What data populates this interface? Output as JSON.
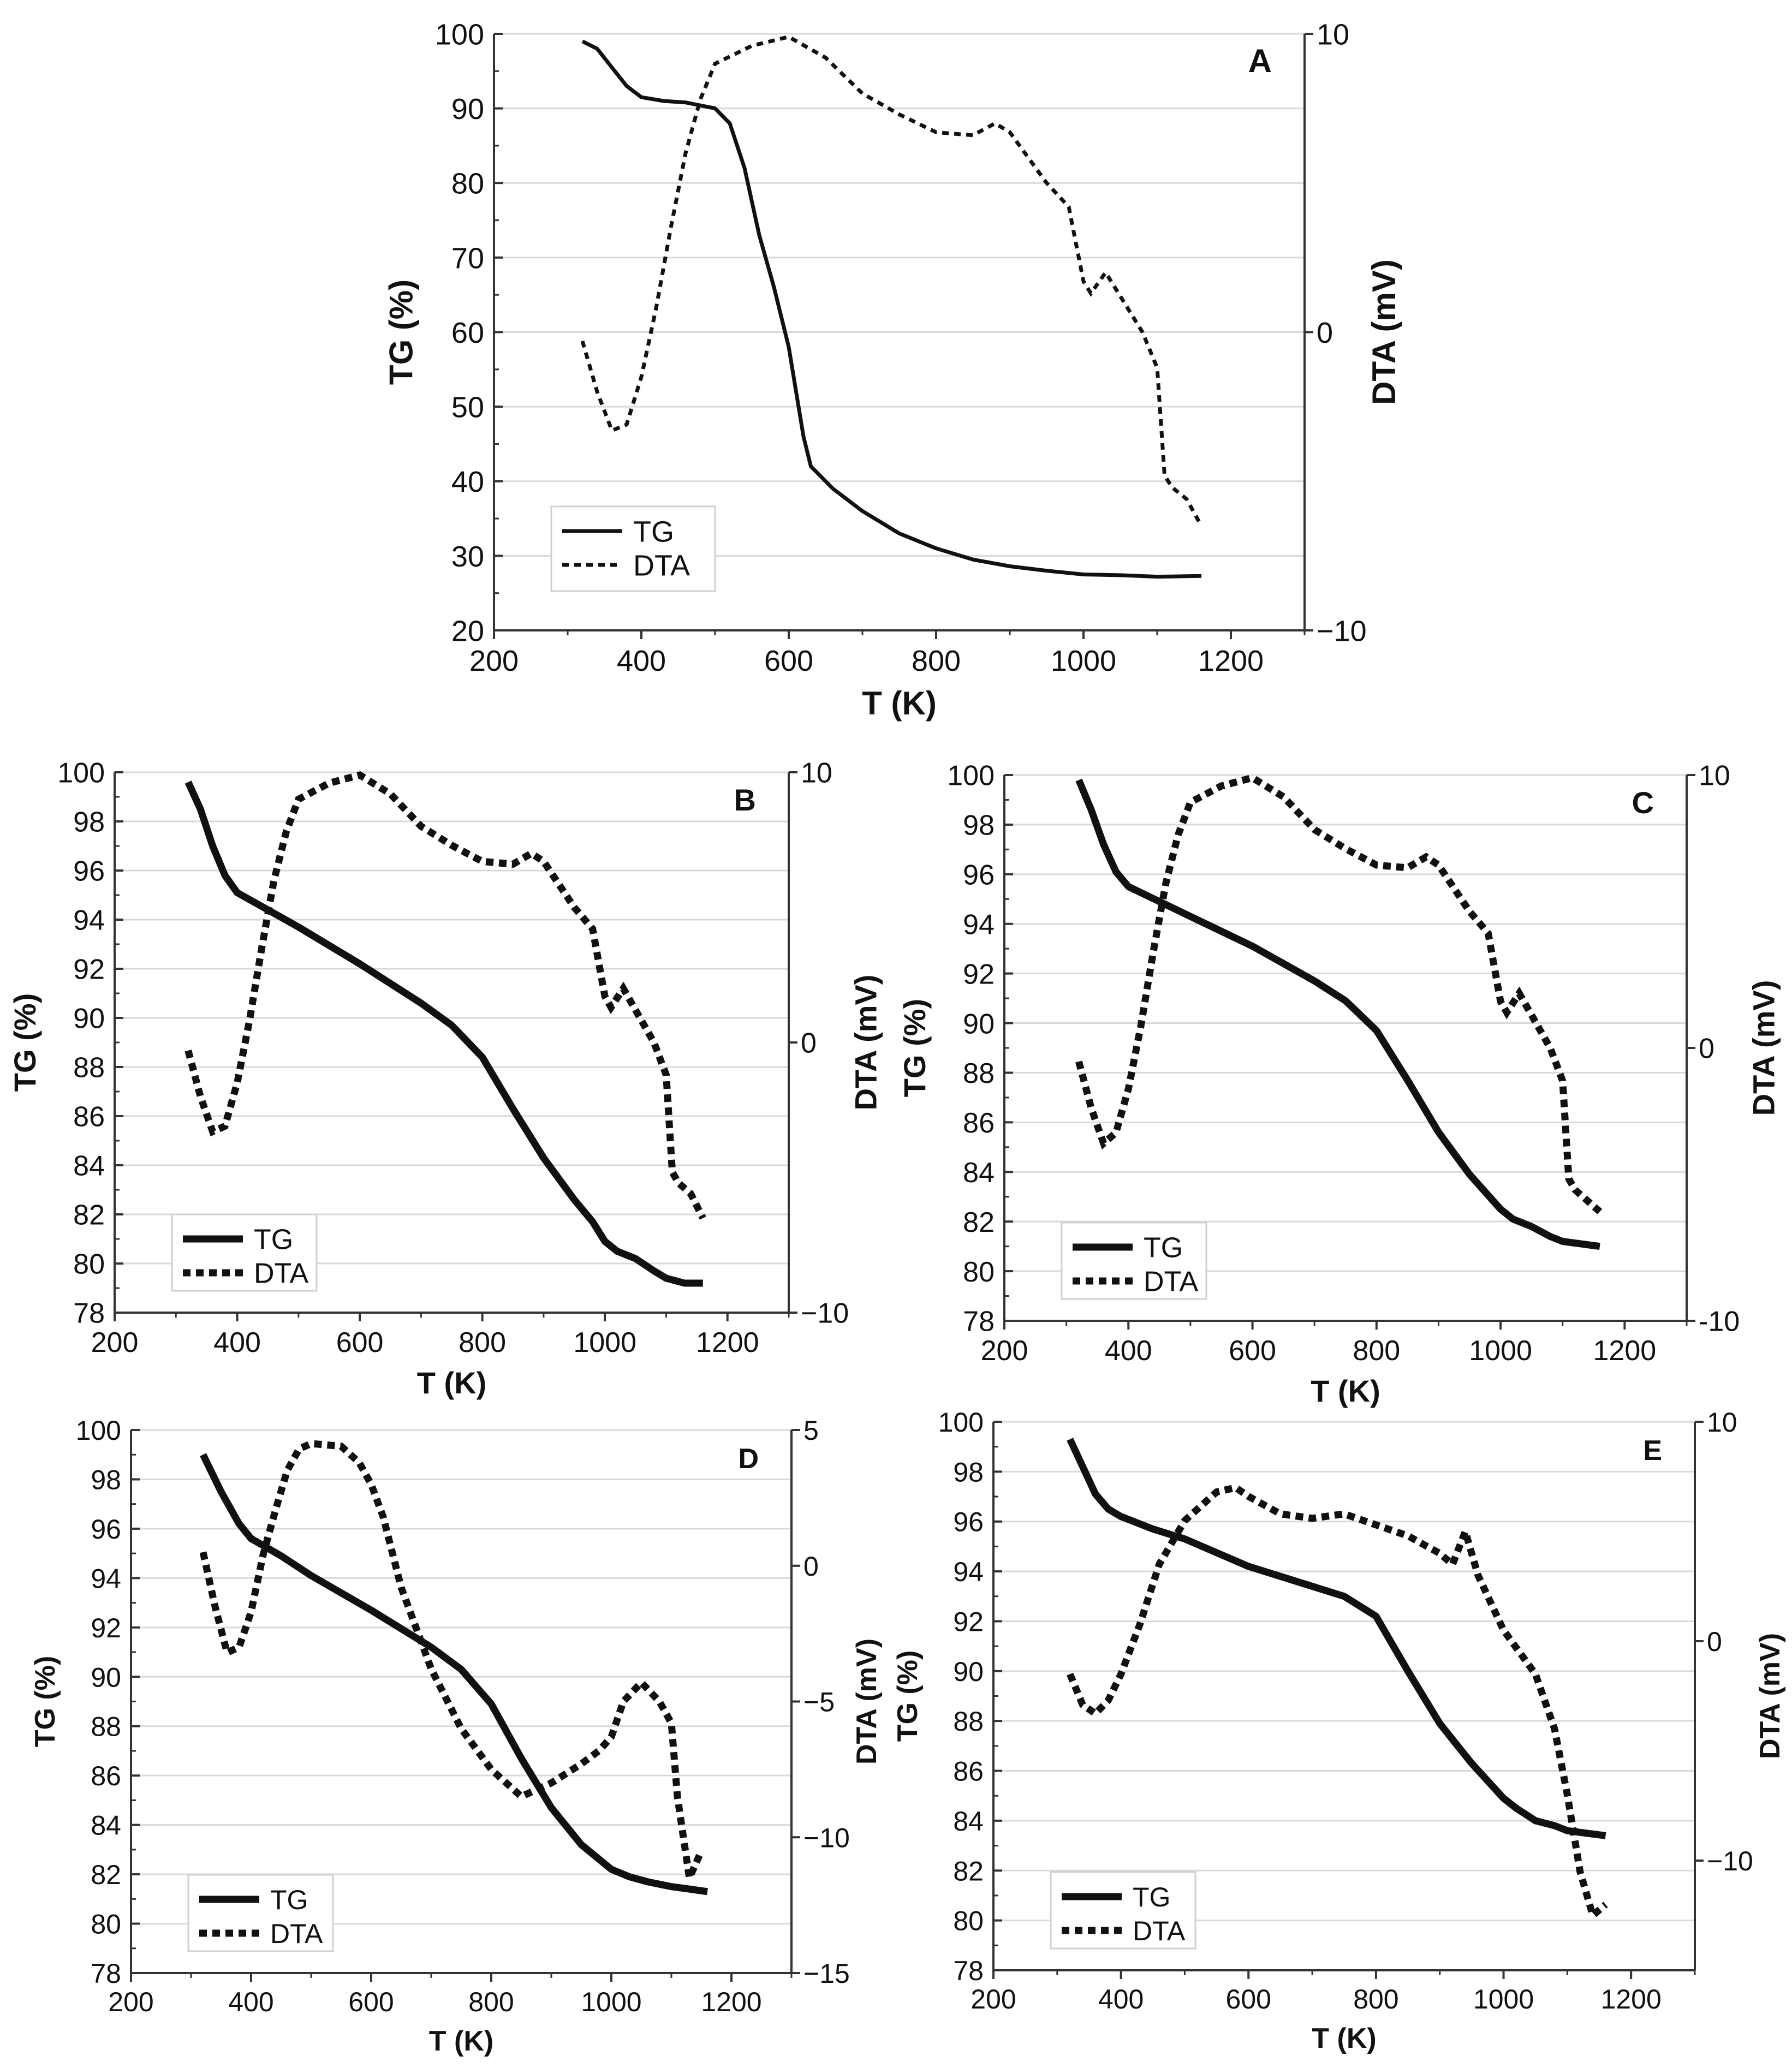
{
  "chart_data": [
    {
      "id": "A",
      "type": "line",
      "panel_label": "A",
      "xlabel": "T (K)",
      "ylabel": "TG (%)",
      "y2label": "DTA (mV)",
      "xlim": [
        200,
        1300
      ],
      "xticks": [
        200,
        400,
        600,
        800,
        1000,
        1200
      ],
      "ylim": [
        20,
        100
      ],
      "yticks": [
        20,
        30,
        40,
        50,
        60,
        70,
        80,
        90,
        100
      ],
      "y2lim": [
        -10,
        10
      ],
      "y2ticks": [
        -10,
        0,
        10
      ],
      "y2ticklabels": [
        "−10",
        "0",
        "10"
      ],
      "grid": "horizontal",
      "legend": {
        "position": "bottom-left",
        "entries": [
          "TG",
          "DTA"
        ]
      },
      "series": [
        {
          "name": "TG",
          "axis": "left",
          "style": "solid",
          "x": [
            320,
            340,
            360,
            380,
            400,
            430,
            460,
            500,
            520,
            540,
            560,
            580,
            600,
            610,
            620,
            630,
            660,
            700,
            750,
            800,
            850,
            900,
            950,
            1000,
            1050,
            1100,
            1160
          ],
          "values": [
            99,
            98,
            95.5,
            93,
            91.5,
            91,
            90.8,
            90,
            88,
            82,
            73,
            66,
            58,
            52,
            46,
            42,
            39,
            36,
            33,
            31,
            29.5,
            28.6,
            28,
            27.5,
            27.4,
            27.2,
            27.3
          ]
        },
        {
          "name": "DTA",
          "axis": "right",
          "style": "dotted",
          "x": [
            320,
            340,
            360,
            380,
            400,
            420,
            440,
            460,
            480,
            500,
            550,
            600,
            650,
            700,
            750,
            800,
            850,
            880,
            900,
            950,
            980,
            1000,
            1010,
            1030,
            1050,
            1080,
            1100,
            1110,
            1120,
            1140,
            1160
          ],
          "values": [
            -0.3,
            -2,
            -3.3,
            -3.1,
            -1.5,
            0.8,
            3.5,
            6,
            7.8,
            9,
            9.6,
            9.9,
            9.2,
            8,
            7.3,
            6.7,
            6.6,
            7,
            6.7,
            5,
            4.2,
            1.7,
            1.3,
            2,
            1.2,
            0,
            -1.2,
            -4.8,
            -5.2,
            -5.6,
            -6.5
          ]
        }
      ]
    },
    {
      "id": "B",
      "type": "line",
      "panel_label": "B",
      "xlabel": "T (K)",
      "ylabel": "TG (%)",
      "y2label": "DTA (mV)",
      "xlim": [
        200,
        1300
      ],
      "xticks": [
        200,
        400,
        600,
        800,
        1000,
        1200
      ],
      "ylim": [
        78,
        100
      ],
      "yticks": [
        78,
        80,
        82,
        84,
        86,
        88,
        90,
        92,
        94,
        96,
        98,
        100
      ],
      "y2lim": [
        -10,
        10
      ],
      "y2ticks": [
        -10,
        0,
        10
      ],
      "y2ticklabels": [
        "−10",
        "0",
        "10"
      ],
      "grid": "horizontal",
      "legend": {
        "position": "bottom-left",
        "entries": [
          "TG",
          "DTA"
        ]
      },
      "series": [
        {
          "name": "TG",
          "axis": "left",
          "style": "solid",
          "x": [
            320,
            340,
            360,
            380,
            400,
            450,
            500,
            600,
            700,
            750,
            800,
            850,
            900,
            950,
            980,
            1000,
            1020,
            1050,
            1080,
            1100,
            1130,
            1160
          ],
          "values": [
            99.6,
            98.5,
            97,
            95.8,
            95.1,
            94.4,
            93.7,
            92.2,
            90.6,
            89.7,
            88.4,
            86.3,
            84.3,
            82.6,
            81.7,
            80.9,
            80.5,
            80.2,
            79.7,
            79.4,
            79.2,
            79.2
          ]
        },
        {
          "name": "DTA",
          "axis": "right",
          "style": "dotted",
          "x": [
            320,
            340,
            360,
            380,
            400,
            420,
            440,
            460,
            480,
            500,
            550,
            600,
            650,
            700,
            750,
            800,
            850,
            880,
            900,
            950,
            980,
            1000,
            1010,
            1030,
            1050,
            1080,
            1100,
            1110,
            1120,
            1140,
            1160
          ],
          "values": [
            -0.3,
            -2,
            -3.3,
            -3.1,
            -1.5,
            0.8,
            3.5,
            6,
            7.8,
            9,
            9.6,
            9.9,
            9.2,
            8,
            7.3,
            6.7,
            6.6,
            7,
            6.7,
            5,
            4.2,
            1.7,
            1.3,
            2,
            1.2,
            0,
            -1.2,
            -4.8,
            -5.2,
            -5.6,
            -6.5
          ]
        }
      ]
    },
    {
      "id": "C",
      "type": "line",
      "panel_label": "C",
      "xlabel": "T (K)",
      "ylabel": "TG (%)",
      "y2label": "DTA (mV)",
      "xlim": [
        200,
        1300
      ],
      "xticks": [
        200,
        400,
        600,
        800,
        1000,
        1200
      ],
      "ylim": [
        78,
        100
      ],
      "yticks": [
        78,
        80,
        82,
        84,
        86,
        88,
        90,
        92,
        94,
        96,
        98,
        100
      ],
      "y2lim": [
        -10,
        10
      ],
      "y2ticks": [
        -10,
        0,
        10
      ],
      "y2ticklabels": [
        "-10",
        "0",
        "10"
      ],
      "grid": "horizontal",
      "legend": {
        "position": "bottom-left",
        "entries": [
          "TG",
          "DTA"
        ]
      },
      "series": [
        {
          "name": "TG",
          "axis": "left",
          "style": "solid",
          "x": [
            320,
            340,
            360,
            380,
            400,
            450,
            500,
            600,
            700,
            750,
            800,
            850,
            900,
            950,
            1000,
            1020,
            1050,
            1080,
            1100,
            1130,
            1160
          ],
          "values": [
            99.8,
            98.6,
            97.2,
            96.1,
            95.5,
            94.9,
            94.3,
            93.1,
            91.7,
            90.9,
            89.7,
            87.7,
            85.6,
            83.9,
            82.5,
            82.1,
            81.8,
            81.4,
            81.2,
            81.1,
            81
          ]
        },
        {
          "name": "DTA",
          "axis": "right",
          "style": "dotted",
          "x": [
            320,
            340,
            360,
            380,
            400,
            420,
            440,
            460,
            480,
            500,
            550,
            600,
            650,
            700,
            750,
            800,
            850,
            880,
            900,
            950,
            980,
            1000,
            1010,
            1030,
            1050,
            1080,
            1100,
            1110,
            1120,
            1140,
            1160
          ],
          "values": [
            -0.5,
            -2.2,
            -3.5,
            -3.1,
            -1.5,
            0.8,
            3.5,
            6,
            7.8,
            9,
            9.6,
            9.9,
            9.2,
            8,
            7.3,
            6.7,
            6.6,
            7,
            6.7,
            5,
            4.2,
            1.7,
            1.3,
            2,
            1.2,
            0,
            -1.2,
            -4.8,
            -5.2,
            -5.6,
            -6
          ]
        }
      ]
    },
    {
      "id": "D",
      "type": "line",
      "panel_label": "D",
      "xlabel": "T (K)",
      "ylabel": "TG (%)",
      "y2label": "DTA (mV)",
      "xlim": [
        200,
        1300
      ],
      "xticks": [
        200,
        400,
        600,
        800,
        1000,
        1200
      ],
      "ylim": [
        78,
        100
      ],
      "yticks": [
        78,
        80,
        82,
        84,
        86,
        88,
        90,
        92,
        94,
        96,
        98,
        100
      ],
      "y2lim": [
        -15,
        5
      ],
      "y2ticks": [
        -15,
        -10,
        -5,
        0,
        5
      ],
      "y2ticklabels": [
        "−15",
        "−10",
        "−5",
        "0",
        "5"
      ],
      "grid": "horizontal",
      "legend": {
        "position": "bottom-left",
        "entries": [
          "TG",
          "DTA"
        ]
      },
      "series": [
        {
          "name": "TG",
          "axis": "left",
          "style": "solid",
          "x": [
            320,
            350,
            380,
            400,
            450,
            500,
            600,
            700,
            750,
            800,
            850,
            900,
            950,
            1000,
            1030,
            1060,
            1080,
            1100,
            1130,
            1160
          ],
          "values": [
            99,
            97.5,
            96.2,
            95.6,
            94.9,
            94.1,
            92.7,
            91.2,
            90.3,
            88.9,
            86.7,
            84.7,
            83.2,
            82.2,
            81.9,
            81.7,
            81.6,
            81.5,
            81.4,
            81.3
          ]
        },
        {
          "name": "DTA",
          "axis": "right",
          "style": "dotted",
          "x": [
            320,
            340,
            360,
            380,
            400,
            420,
            440,
            460,
            480,
            500,
            550,
            580,
            600,
            620,
            650,
            700,
            750,
            800,
            850,
            900,
            950,
            980,
            1000,
            1020,
            1050,
            1080,
            1100,
            1110,
            1130,
            1150
          ],
          "values": [
            0.5,
            -1.5,
            -3.2,
            -3,
            -1.7,
            0.4,
            2,
            3.5,
            4.3,
            4.5,
            4.4,
            3.8,
            3,
            1.8,
            -0.8,
            -3.8,
            -6,
            -7.5,
            -8.5,
            -8,
            -7.3,
            -6.8,
            -6.3,
            -5,
            -4.3,
            -5,
            -5.8,
            -8.5,
            -11.5,
            -10.5
          ]
        }
      ]
    },
    {
      "id": "E",
      "type": "line",
      "panel_label": "E",
      "xlabel": "T (K)",
      "ylabel": "TG (%)",
      "y2label": "DTA (mV)",
      "xlim": [
        200,
        1300
      ],
      "xticks": [
        200,
        400,
        600,
        800,
        1000,
        1200
      ],
      "ylim": [
        78,
        100
      ],
      "yticks": [
        78,
        80,
        82,
        84,
        86,
        88,
        90,
        92,
        94,
        96,
        98,
        100
      ],
      "y2lim": [
        -15,
        10
      ],
      "y2ticks": [
        -10,
        0,
        10
      ],
      "y2ticklabels": [
        "−10",
        "0",
        "10"
      ],
      "grid": "horizontal",
      "legend": {
        "position": "bottom-left",
        "entries": [
          "TG",
          "DTA"
        ]
      },
      "series": [
        {
          "name": "TG",
          "axis": "left",
          "style": "solid",
          "x": [
            320,
            340,
            360,
            380,
            400,
            450,
            500,
            600,
            700,
            750,
            800,
            850,
            900,
            950,
            1000,
            1020,
            1050,
            1080,
            1100,
            1130,
            1160
          ],
          "values": [
            99.3,
            98.2,
            97.1,
            96.5,
            96.2,
            95.7,
            95.3,
            94.2,
            93.4,
            93,
            92.2,
            90,
            87.9,
            86.3,
            84.9,
            84.5,
            84,
            83.8,
            83.6,
            83.5,
            83.4
          ]
        },
        {
          "name": "DTA",
          "axis": "right",
          "style": "dotted",
          "x": [
            320,
            340,
            360,
            380,
            400,
            430,
            460,
            500,
            550,
            580,
            600,
            650,
            700,
            750,
            800,
            850,
            900,
            920,
            940,
            960,
            1000,
            1050,
            1080,
            1100,
            1120,
            1140,
            1160
          ],
          "values": [
            -1.5,
            -2.9,
            -3.3,
            -2.7,
            -1.5,
            0.8,
            3.5,
            5.5,
            6.8,
            7,
            6.6,
            5.8,
            5.6,
            5.8,
            5.3,
            4.8,
            4,
            3.5,
            5,
            3,
            0.5,
            -1.5,
            -4,
            -7,
            -10.5,
            -12.5,
            -12
          ]
        }
      ]
    }
  ]
}
